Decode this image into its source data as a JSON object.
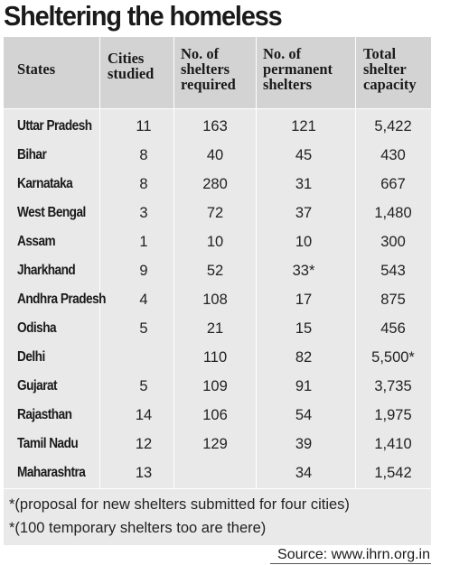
{
  "title": "Sheltering the homeless",
  "columns": {
    "state": "States",
    "cities": "Cities\nstudied",
    "required": "No. of\nshelters\nrequired",
    "permanent": "No. of\npermanent\nshelters",
    "capacity": "Total\nshelter\ncapacity"
  },
  "rows": [
    {
      "state": "Uttar Pradesh",
      "cities": "11",
      "required": "163",
      "permanent": "121",
      "capacity": "5,422"
    },
    {
      "state": "Bihar",
      "cities": "8",
      "required": "40",
      "permanent": "45",
      "capacity": "430"
    },
    {
      "state": "Karnataka",
      "cities": "8",
      "required": "280",
      "permanent": "31",
      "capacity": "667"
    },
    {
      "state": "West Bengal",
      "cities": "3",
      "required": "72",
      "permanent": "37",
      "capacity": "1,480"
    },
    {
      "state": "Assam",
      "cities": "1",
      "required": "10",
      "permanent": "10",
      "capacity": "300"
    },
    {
      "state": "Jharkhand",
      "cities": "9",
      "required": "52",
      "permanent": "33*",
      "capacity": "543"
    },
    {
      "state": "Andhra Pradesh",
      "cities": "4",
      "required": "108",
      "permanent": "17",
      "capacity": "875"
    },
    {
      "state": "Odisha",
      "cities": "5",
      "required": "21",
      "permanent": "15",
      "capacity": "456"
    },
    {
      "state": "Delhi",
      "cities": "",
      "required": "110",
      "permanent": "82",
      "capacity": "5,500*"
    },
    {
      "state": "Gujarat",
      "cities": "5",
      "required": "109",
      "permanent": "91",
      "capacity": "3,735"
    },
    {
      "state": "Rajasthan",
      "cities": "14",
      "required": "106",
      "permanent": "54",
      "capacity": "1,975"
    },
    {
      "state": "Tamil Nadu",
      "cities": "12",
      "required": "129",
      "permanent": "39",
      "capacity": "1,410"
    },
    {
      "state": "Maharashtra",
      "cities": "13",
      "required": "",
      "permanent": "34",
      "capacity": "1,542"
    }
  ],
  "footnotes": [
    "*(proposal for new shelters submitted for four cities)",
    "*(100 temporary shelters too are there)"
  ],
  "source": "Source: www.ihrn.org.in"
}
